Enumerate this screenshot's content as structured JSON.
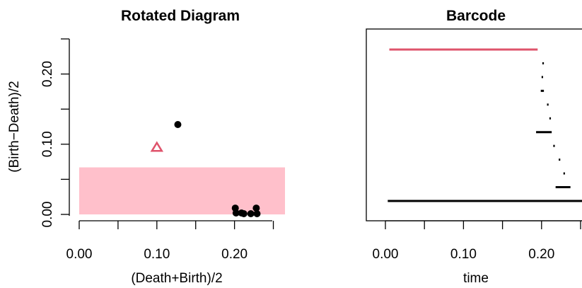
{
  "chart_data": [
    {
      "type": "scatter",
      "title": "Rotated Diagram",
      "xlabel": "(Death+Birth)/2",
      "ylabel": "(Birth−Death)/2",
      "xlim": [
        0,
        0.265
      ],
      "ylim": [
        0,
        0.25
      ],
      "x_ticks": [
        0.0,
        0.05,
        0.1,
        0.15,
        0.2,
        0.25
      ],
      "x_tick_labels": [
        "0.00",
        "",
        "0.10",
        "",
        "0.20",
        ""
      ],
      "y_ticks": [
        0.0,
        0.05,
        0.1,
        0.15,
        0.2,
        0.25
      ],
      "y_tick_labels": [
        "0.00",
        "",
        "0.10",
        "",
        "0.20",
        ""
      ],
      "band": {
        "y_max": 0.067,
        "color": "#ffc0cb"
      },
      "points": [
        {
          "x": 0.127,
          "y": 0.128,
          "shape": "circle",
          "color": "#000000"
        },
        {
          "x": 0.1,
          "y": 0.095,
          "shape": "triangle",
          "color": "#df536b"
        },
        {
          "x": 0.201,
          "y": 0.009,
          "shape": "circle",
          "color": "#000000"
        },
        {
          "x": 0.202,
          "y": 0.002,
          "shape": "circle",
          "color": "#000000"
        },
        {
          "x": 0.209,
          "y": 0.002,
          "shape": "circle",
          "color": "#000000"
        },
        {
          "x": 0.212,
          "y": 0.001,
          "shape": "circle",
          "color": "#000000"
        },
        {
          "x": 0.221,
          "y": 0.001,
          "shape": "circle",
          "color": "#000000"
        },
        {
          "x": 0.228,
          "y": 0.009,
          "shape": "circle",
          "color": "#000000"
        },
        {
          "x": 0.229,
          "y": 0.001,
          "shape": "circle",
          "color": "#000000"
        }
      ]
    },
    {
      "type": "barcode",
      "title": "Barcode",
      "xlabel": "time",
      "xlim": [
        -0.005,
        0.255
      ],
      "x_ticks": [
        0.0,
        0.05,
        0.1,
        0.15,
        0.2,
        0.25
      ],
      "x_tick_labels": [
        "0.00",
        "",
        "0.10",
        "",
        "0.20",
        ""
      ],
      "bars": [
        {
          "birth": 0.003,
          "death": 0.265,
          "color": "#000000",
          "row": 0
        },
        {
          "birth": 0.218,
          "death": 0.237,
          "color": "#000000",
          "row": 1
        },
        {
          "birth": 0.228,
          "death": 0.23,
          "color": "#000000",
          "row": 2
        },
        {
          "birth": 0.222,
          "death": 0.224,
          "color": "#000000",
          "row": 3
        },
        {
          "birth": 0.215,
          "death": 0.217,
          "color": "#000000",
          "row": 4
        },
        {
          "birth": 0.193,
          "death": 0.213,
          "color": "#000000",
          "row": 5
        },
        {
          "birth": 0.21,
          "death": 0.212,
          "color": "#000000",
          "row": 6
        },
        {
          "birth": 0.207,
          "death": 0.209,
          "color": "#000000",
          "row": 7
        },
        {
          "birth": 0.199,
          "death": 0.203,
          "color": "#000000",
          "row": 8
        },
        {
          "birth": 0.2,
          "death": 0.202,
          "color": "#000000",
          "row": 9
        },
        {
          "birth": 0.201,
          "death": 0.203,
          "color": "#000000",
          "row": 10
        },
        {
          "birth": 0.005,
          "death": 0.195,
          "color": "#df536b",
          "row": 11
        }
      ]
    }
  ]
}
